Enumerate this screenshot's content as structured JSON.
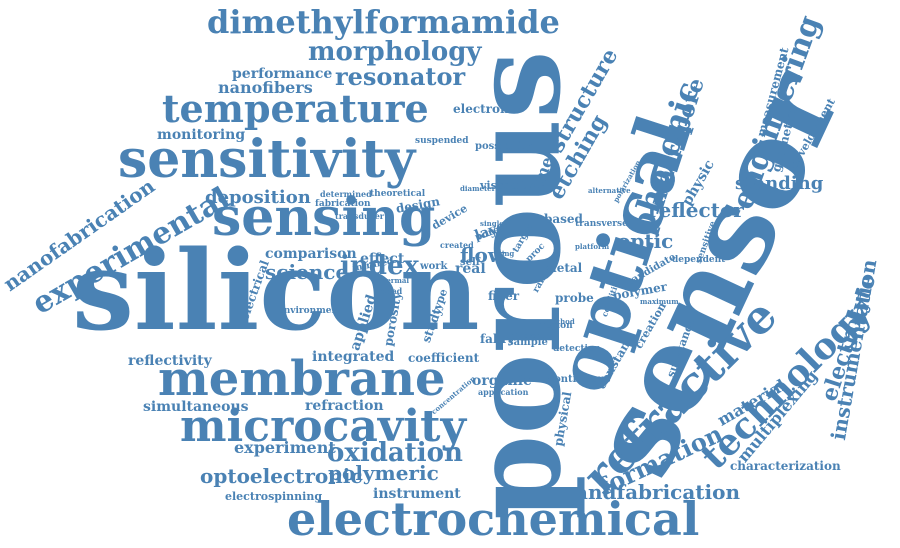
{
  "palette": {
    "word_color": "#4a82b4",
    "background": "#ffffff"
  },
  "words": [
    {
      "id": "porous",
      "text": "porous"
    },
    {
      "id": "sensor",
      "text": "sensor"
    },
    {
      "id": "silicon",
      "text": "silicon"
    },
    {
      "id": "optical",
      "text": "optical"
    },
    {
      "id": "sensitivity",
      "text": "sensitivity"
    },
    {
      "id": "sensing",
      "text": "sensing"
    },
    {
      "id": "membrane",
      "text": "membrane"
    },
    {
      "id": "electrochemical",
      "text": "electrochemical"
    },
    {
      "id": "microcavity",
      "text": "microcavity"
    },
    {
      "id": "temperature",
      "text": "temperature"
    },
    {
      "id": "refractive",
      "text": "refractive"
    },
    {
      "id": "dimethylformamide",
      "text": "dimethylformamide"
    },
    {
      "id": "technology",
      "text": "technology"
    },
    {
      "id": "experimental",
      "text": "experimental"
    },
    {
      "id": "morphology",
      "text": "morphology"
    },
    {
      "id": "photonic",
      "text": "photonic"
    },
    {
      "id": "engineering",
      "text": "engineering"
    },
    {
      "id": "resonator",
      "text": "resonator"
    },
    {
      "id": "oxidation",
      "text": "oxidation"
    },
    {
      "id": "formation",
      "text": "formation"
    },
    {
      "id": "index",
      "text": "index"
    },
    {
      "id": "nanofabrication",
      "text": "nanofabrication"
    },
    {
      "id": "electrolyte",
      "text": "electrolyte"
    },
    {
      "id": "instrumentation",
      "text": "instrumentation"
    },
    {
      "id": "macropore",
      "text": "macropore"
    },
    {
      "id": "structure",
      "text": "structure"
    },
    {
      "id": "etching",
      "text": "etching"
    },
    {
      "id": "reflector",
      "text": "reflector"
    },
    {
      "id": "optic",
      "text": "optic"
    },
    {
      "id": "standing",
      "text": "standing"
    },
    {
      "id": "andfabrication",
      "text": "andfabrication"
    },
    {
      "id": "optoelectronic",
      "text": "optoelectronic"
    },
    {
      "id": "polymeric",
      "text": "polymeric"
    },
    {
      "id": "experiment",
      "text": "experiment"
    },
    {
      "id": "flow",
      "text": "flow"
    },
    {
      "id": "deposition",
      "text": "deposition"
    },
    {
      "id": "nanofibers",
      "text": "nanofibers"
    },
    {
      "id": "performance",
      "text": "performance"
    },
    {
      "id": "monitoring",
      "text": "monitoring"
    },
    {
      "id": "science",
      "text": "science"
    },
    {
      "id": "comparison",
      "text": "comparison"
    },
    {
      "id": "multiplexing",
      "text": "multiplexing"
    },
    {
      "id": "material",
      "text": "material"
    },
    {
      "id": "time",
      "text": "time"
    },
    {
      "id": "physic",
      "text": "physic"
    },
    {
      "id": "measurement",
      "text": "measurement"
    },
    {
      "id": "geometric",
      "text": "geometric"
    },
    {
      "id": "development",
      "text": "development"
    },
    {
      "id": "reflectivity",
      "text": "reflectivity"
    },
    {
      "id": "simultaneous",
      "text": "simultaneous"
    },
    {
      "id": "refraction",
      "text": "refraction"
    },
    {
      "id": "integrated",
      "text": "integrated"
    },
    {
      "id": "coefficient",
      "text": "coefficient"
    },
    {
      "id": "organic",
      "text": "organic"
    },
    {
      "id": "instrument",
      "text": "instrument"
    },
    {
      "id": "electrospinning",
      "text": "electrospinning"
    },
    {
      "id": "characterization",
      "text": "characterization"
    },
    {
      "id": "electronic",
      "text": "electronic"
    },
    {
      "id": "possibility",
      "text": "possibility"
    },
    {
      "id": "viscosity",
      "text": "viscosity"
    },
    {
      "id": "suspended",
      "text": "suspended"
    },
    {
      "id": "layer",
      "text": "layer"
    },
    {
      "id": "pore",
      "text": "pore"
    },
    {
      "id": "real",
      "text": "real"
    },
    {
      "id": "effect",
      "text": "effect"
    },
    {
      "id": "self",
      "text": "self"
    },
    {
      "id": "fiber",
      "text": "fiber"
    },
    {
      "id": "metal",
      "text": "metal"
    },
    {
      "id": "probe",
      "text": "probe"
    },
    {
      "id": "polymer",
      "text": "polymer"
    },
    {
      "id": "candidate",
      "text": "candidate"
    },
    {
      "id": "sample",
      "text": "sample"
    },
    {
      "id": "fabry",
      "text": "fabry"
    },
    {
      "id": "detection",
      "text": "detection"
    },
    {
      "id": "continuous",
      "text": "continuous"
    },
    {
      "id": "physical",
      "text": "physical"
    },
    {
      "id": "constant",
      "text": "constant"
    },
    {
      "id": "substance",
      "text": "substance"
    },
    {
      "id": "creation",
      "text": "creation"
    },
    {
      "id": "electrical",
      "text": "electrical"
    },
    {
      "id": "applied",
      "text": "applied"
    },
    {
      "id": "porosity",
      "text": "porosity"
    },
    {
      "id": "study",
      "text": "study"
    },
    {
      "id": "type",
      "text": "type"
    },
    {
      "id": "based",
      "text": "based"
    },
    {
      "id": "transverse",
      "text": "transverse"
    },
    {
      "id": "design",
      "text": "design"
    },
    {
      "id": "device",
      "text": "device"
    },
    {
      "id": "theoretical",
      "text": "theoretical"
    },
    {
      "id": "determined",
      "text": "determined"
    },
    {
      "id": "fabrication",
      "text": "fabrication"
    },
    {
      "id": "transducer",
      "text": "transducer"
    },
    {
      "id": "infrared",
      "text": "infrared"
    },
    {
      "id": "environment",
      "text": "environment"
    },
    {
      "id": "region",
      "text": "region"
    },
    {
      "id": "application",
      "text": "application"
    },
    {
      "id": "different",
      "text": "different"
    },
    {
      "id": "sensitive",
      "text": "sensitive"
    },
    {
      "id": "dependent",
      "text": "dependent"
    },
    {
      "id": "condition",
      "text": "condition"
    },
    {
      "id": "alternative",
      "text": "alternative"
    },
    {
      "id": "polarization",
      "text": "polarization"
    },
    {
      "id": "target",
      "text": "target"
    },
    {
      "id": "work",
      "text": "work"
    },
    {
      "id": "created",
      "text": "created"
    },
    {
      "id": "doped",
      "text": "doped"
    },
    {
      "id": "thermal",
      "text": "thermal"
    },
    {
      "id": "diameter",
      "text": "diameter"
    },
    {
      "id": "platform",
      "text": "platform"
    },
    {
      "id": "maximum",
      "text": "maximum"
    },
    {
      "id": "method",
      "text": "method"
    },
    {
      "id": "concentration",
      "text": "concentration"
    },
    {
      "id": "ring",
      "text": "ring"
    },
    {
      "id": "single",
      "text": "single"
    },
    {
      "id": "proc",
      "text": "proc"
    },
    {
      "id": "range",
      "text": "range"
    }
  ]
}
